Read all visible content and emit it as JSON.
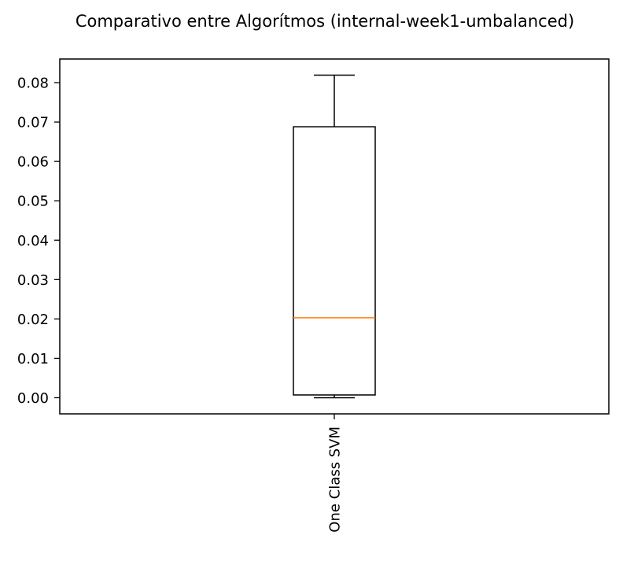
{
  "chart_data": {
    "type": "box",
    "title": "Comparativo entre Algorítmos (internal-week1-umbalanced)",
    "xlabel": "",
    "ylabel": "",
    "categories": [
      "One Class SVM"
    ],
    "boxes": [
      {
        "label": "One Class SVM",
        "whisker_low": 0.0,
        "q1": 0.0007,
        "median": 0.0203,
        "q3": 0.0688,
        "whisker_high": 0.0819
      }
    ],
    "ylim": [
      -0.0041,
      0.086
    ],
    "yticks": [
      0.0,
      0.01,
      0.02,
      0.03,
      0.04,
      0.05,
      0.06,
      0.07,
      0.08
    ],
    "ytick_labels": [
      "0.00",
      "0.01",
      "0.02",
      "0.03",
      "0.04",
      "0.05",
      "0.06",
      "0.07",
      "0.08"
    ],
    "grid": false,
    "colors": {
      "box": "#000000",
      "median": "#ff7f0e",
      "axes": "#000000"
    }
  }
}
